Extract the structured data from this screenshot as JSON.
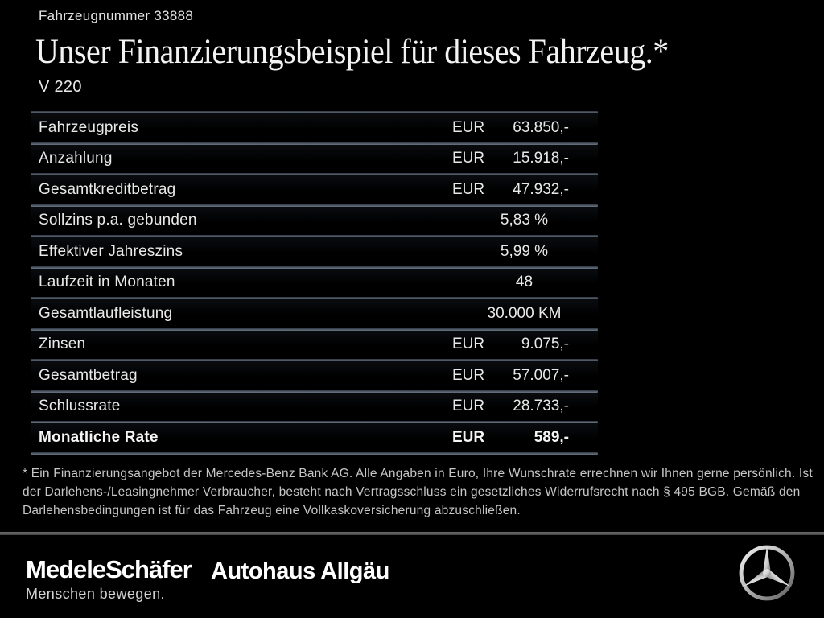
{
  "header": {
    "vehicle_number": "Fahrzeugnummer 33888",
    "title": "Unser Finanzierungsbeispiel für dieses Fahrzeug.*",
    "model": "V 220"
  },
  "finance_table": {
    "rows": [
      {
        "label": "Fahrzeugpreis",
        "currency": "EUR",
        "value": "63.850,-",
        "bold": false
      },
      {
        "label": "Anzahlung",
        "currency": "EUR",
        "value": "15.918,-",
        "bold": false
      },
      {
        "label": "Gesamtkreditbetrag",
        "currency": "EUR",
        "value": "47.932,-",
        "bold": false
      },
      {
        "label": "Sollzins p.a. gebunden",
        "currency": "",
        "value": "5,83 %",
        "bold": false
      },
      {
        "label": "Effektiver Jahreszins",
        "currency": "",
        "value": "5,99 %",
        "bold": false
      },
      {
        "label": "Laufzeit in Monaten",
        "currency": "",
        "value": "48",
        "bold": false
      },
      {
        "label": "Gesamtlaufleistung",
        "currency": "",
        "value": "30.000 KM",
        "bold": false
      },
      {
        "label": "Zinsen",
        "currency": "EUR",
        "value": "9.075,-",
        "bold": false
      },
      {
        "label": "Gesamtbetrag",
        "currency": "EUR",
        "value": "57.007,-",
        "bold": false
      },
      {
        "label": "Schlussrate",
        "currency": "EUR",
        "value": "28.733,-",
        "bold": false
      },
      {
        "label": "Monatliche Rate",
        "currency": "EUR",
        "value": "589,-",
        "bold": true
      }
    ]
  },
  "disclaimer": {
    "text": "* Ein Finanzierungsangebot der Mercedes-Benz Bank AG. Alle Angaben in Euro, Ihre Wunschrate errechnen wir Ihnen gerne persönlich. Ist der Darlehens-/Leasingnehmer Verbraucher, besteht nach Vertragsschluss ein gesetzliches Widerrufsrecht nach § 495 BGB. Gemäß den Darlehensbedingungen ist für das Fahrzeug eine Vollkaskoversicherung abzuschließen."
  },
  "footer": {
    "dealer_primary": "MedeleSchäfer",
    "dealer_tagline": "Menschen bewegen.",
    "dealer_secondary": "Autohaus Allgäu",
    "brand_logo": "mercedes-star-icon"
  },
  "colors": {
    "background": "#000000",
    "text_primary": "#e9e9e9",
    "text_muted": "#c6c6c6",
    "separator": "#5d6875",
    "footer_divider": "#555555"
  }
}
